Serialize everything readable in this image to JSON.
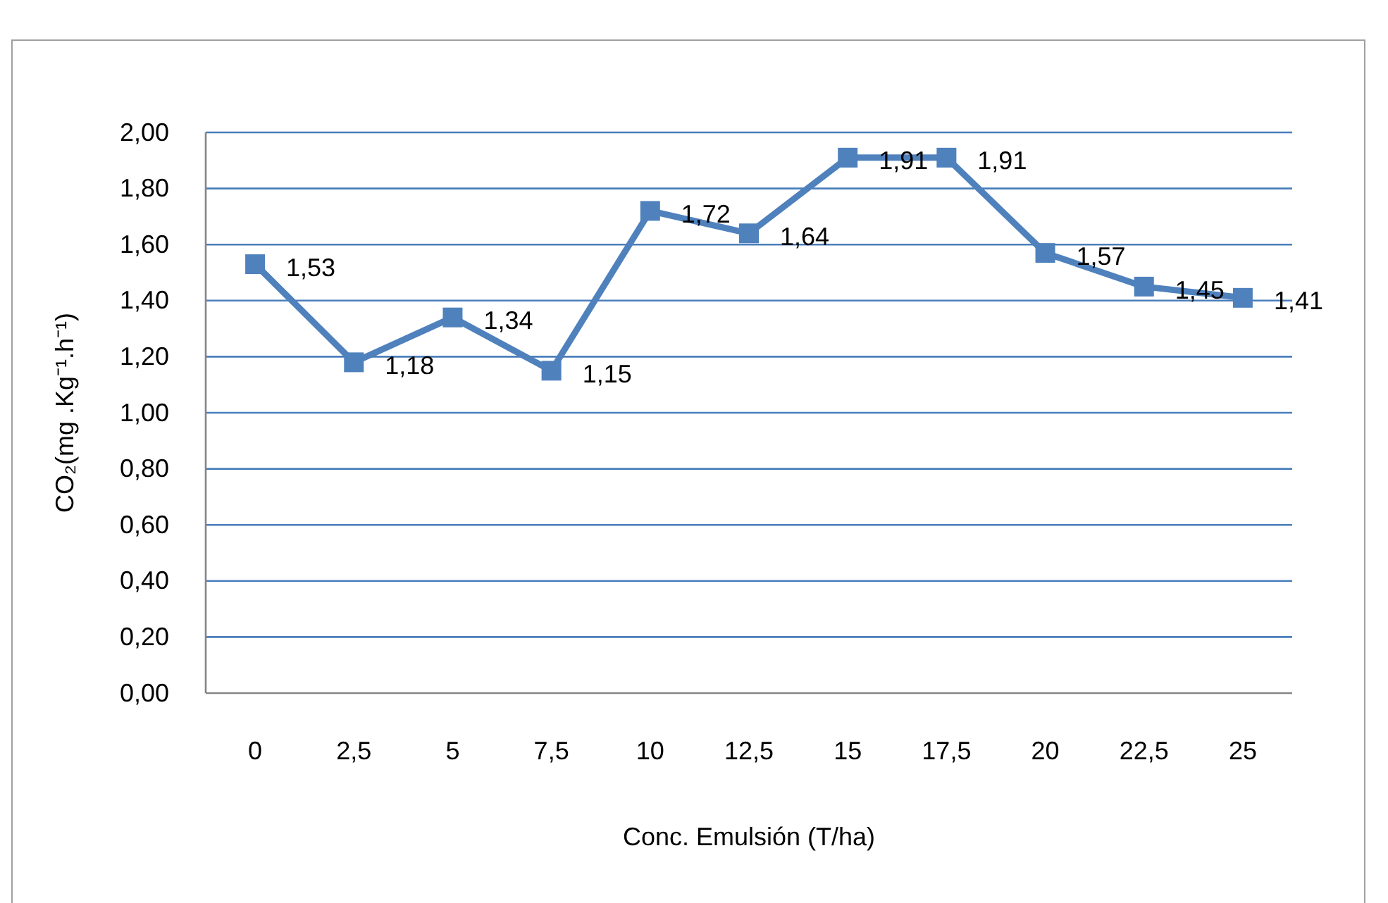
{
  "chart_data": {
    "type": "line",
    "xlabel": "Conc. Emulsión (T/ha)",
    "ylabel": "CO₂(mg .Kg⁻¹.h⁻¹)",
    "categories": [
      "0",
      "2,5",
      "5",
      "7,5",
      "10",
      "12,5",
      "15",
      "17,5",
      "20",
      "22,5",
      "25"
    ],
    "series": [
      {
        "color": "#4f81bd",
        "values": [
          1.53,
          1.18,
          1.34,
          1.15,
          1.72,
          1.64,
          1.91,
          1.91,
          1.57,
          1.45,
          1.41
        ],
        "value_labels": [
          "1,53",
          "1,18",
          "1,34",
          "1,15",
          "1,72",
          "1,64",
          "1,91",
          "1,91",
          "1,57",
          "1,45",
          "1,41"
        ]
      }
    ],
    "ylim": [
      0,
      2
    ],
    "yticks": [
      {
        "value": 0,
        "label": "0,00"
      },
      {
        "value": 0.2,
        "label": "0,20"
      },
      {
        "value": 0.4,
        "label": "0,40"
      },
      {
        "value": 0.6,
        "label": "0,60"
      },
      {
        "value": 0.8,
        "label": "0,80"
      },
      {
        "value": 1,
        "label": "1,00"
      },
      {
        "value": 1.2,
        "label": "1,20"
      },
      {
        "value": 1.4,
        "label": "1,40"
      },
      {
        "value": 1.6,
        "label": "1,60"
      },
      {
        "value": 1.8,
        "label": "1,80"
      },
      {
        "value": 2,
        "label": "2,00"
      }
    ],
    "grid": "y",
    "marker": "square",
    "line_style": "solid"
  }
}
